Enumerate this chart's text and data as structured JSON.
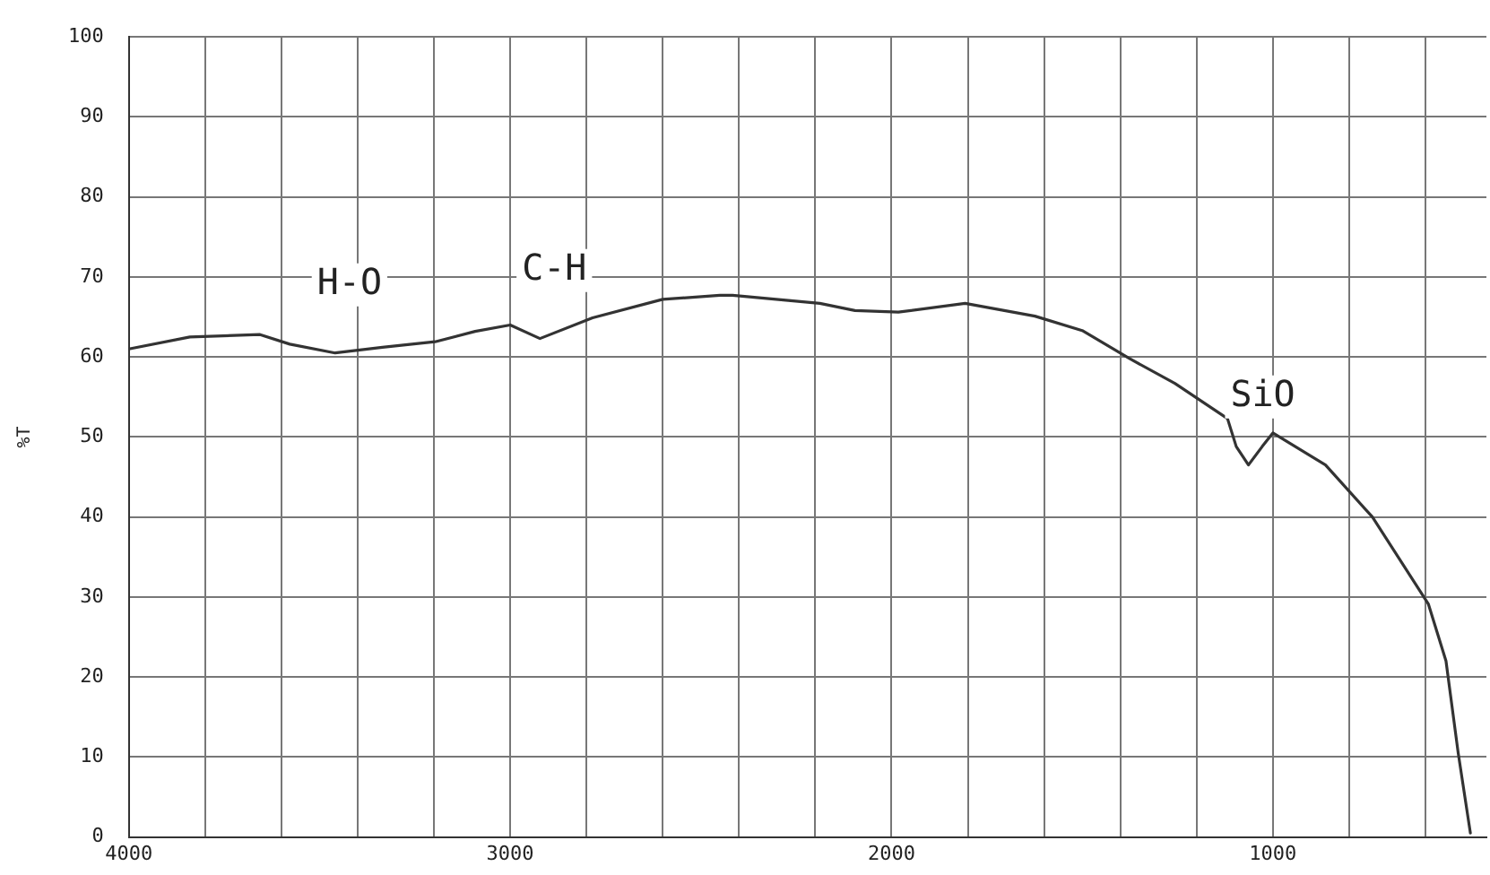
{
  "chart_data": {
    "type": "line",
    "ylabel": "%T",
    "x": [
      4000,
      3840,
      3656,
      3578,
      3459,
      3335,
      3197,
      3092,
      3000,
      2922,
      2784,
      2600,
      2450,
      2417,
      2188,
      2096,
      1982,
      1807,
      1624,
      1500,
      1376,
      1257,
      1119,
      1096,
      1064,
      1028,
      1000,
      862,
      739,
      592,
      546,
      514,
      482
    ],
    "series": [
      {
        "color": "#333333",
        "values": [
          61,
          62.5,
          62.8,
          61.6,
          60.5,
          61.2,
          61.9,
          63.2,
          64,
          62.3,
          64.9,
          67.2,
          67.7,
          67.7,
          66.7,
          65.8,
          65.6,
          66.7,
          65.1,
          63.3,
          59.8,
          56.7,
          52.3,
          48.8,
          46.5,
          48.8,
          50.5,
          46.5,
          40,
          29.1,
          22,
          10.5,
          0.5
        ]
      }
    ],
    "xlim": [
      4000,
      440
    ],
    "xticks": [
      4000,
      {
        "value": 3800,
        "label": null
      },
      {
        "value": 3600,
        "label": null
      },
      {
        "value": 3400,
        "label": null
      },
      {
        "value": 3200,
        "label": null
      },
      3000,
      {
        "value": 2800,
        "label": null
      },
      {
        "value": 2600,
        "label": null
      },
      {
        "value": 2400,
        "label": null
      },
      {
        "value": 2200,
        "label": null
      },
      2000,
      {
        "value": 1800,
        "label": null
      },
      {
        "value": 1600,
        "label": null
      },
      {
        "value": 1400,
        "label": null
      },
      {
        "value": 1200,
        "label": null
      },
      1000,
      {
        "value": 800,
        "label": null
      },
      {
        "value": 600,
        "label": null
      }
    ],
    "ylim": [
      0,
      100
    ],
    "yticks": [
      0,
      10,
      20,
      30,
      40,
      50,
      60,
      70,
      80,
      90,
      100
    ],
    "grid": true,
    "marker": "none",
    "line_style": "solid",
    "annotations": [
      {
        "text": "H-O",
        "x": 3459,
        "y": 60.5
      },
      {
        "text": "C-H",
        "x": 2922,
        "y": 62.3
      },
      {
        "text": "SiO",
        "x": 1064,
        "y": 46.5
      }
    ]
  }
}
